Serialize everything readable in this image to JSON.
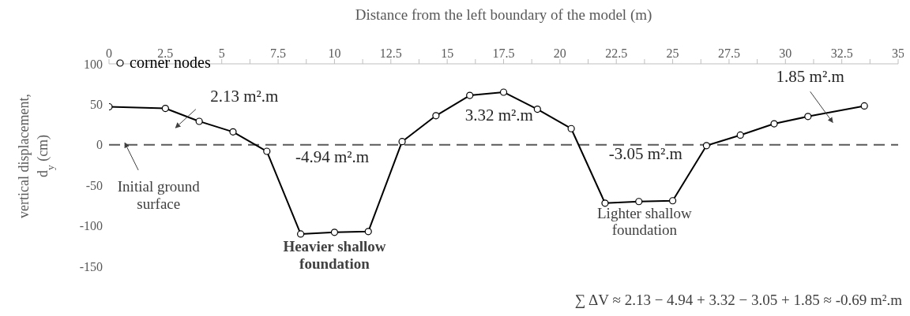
{
  "chart_data": {
    "type": "line",
    "xlabel": "Distance from the left boundary of the model (m)",
    "ylabel": "vertical displacement, d$_{y}$ (cm)",
    "x": [
      0,
      2.5,
      4,
      5.5,
      7,
      8.5,
      10,
      11.5,
      13,
      14.5,
      16,
      17.5,
      19,
      20.5,
      22,
      23.5,
      25,
      26.5,
      28,
      29.5,
      31,
      33.5
    ],
    "series": [
      {
        "name": "corner nodes",
        "color": "#000000",
        "values": [
          47,
          45,
          29,
          16,
          -8,
          -110,
          -108,
          -107,
          4,
          36,
          61,
          65,
          44,
          20,
          -72,
          -70,
          -69,
          -1,
          12,
          26,
          35,
          48
        ]
      }
    ],
    "xlim": [
      0,
      35
    ],
    "xticks": [
      0,
      {
        "value": 1.25,
        "label": null
      },
      2.5,
      {
        "value": 3.75,
        "label": null
      },
      5,
      {
        "value": 6.25,
        "label": null
      },
      7.5,
      {
        "value": 8.75,
        "label": null
      },
      10,
      {
        "value": 11.25,
        "label": null
      },
      12.5,
      {
        "value": 13.75,
        "label": null
      },
      15,
      {
        "value": 16.25,
        "label": null
      },
      17.5,
      {
        "value": 18.75,
        "label": null
      },
      20,
      {
        "value": 21.25,
        "label": null
      },
      22.5,
      {
        "value": 23.75,
        "label": null
      },
      25,
      {
        "value": 26.25,
        "label": null
      },
      27.5,
      {
        "value": 28.75,
        "label": null
      },
      30,
      {
        "value": 31.25,
        "label": null
      },
      32.5,
      {
        "value": 33.75,
        "label": null
      },
      35
    ],
    "ylim": [
      -150,
      100
    ],
    "yticks": [
      -150,
      -100,
      -50,
      0,
      50,
      100
    ],
    "marker": "circle",
    "line_style": "solid",
    "legend": "top left",
    "ref_lines": [
      {
        "axis": "y",
        "value": 0,
        "color": "#595959",
        "line_style": "dashed"
      }
    ],
    "annotations": [
      "2.13 m².m",
      "3.32 m².m",
      "-4.94 m².m",
      "-3.05 m².m",
      "1.85 m².m",
      "Initial ground surface",
      "Heavier shallow foundation",
      "Lighter shallow foundation",
      "∑ ΔV ≈ 2.13 − 4.94 + 3.32 − 3.05 + 1.85 ≈ -0.69 m².m"
    ]
  }
}
